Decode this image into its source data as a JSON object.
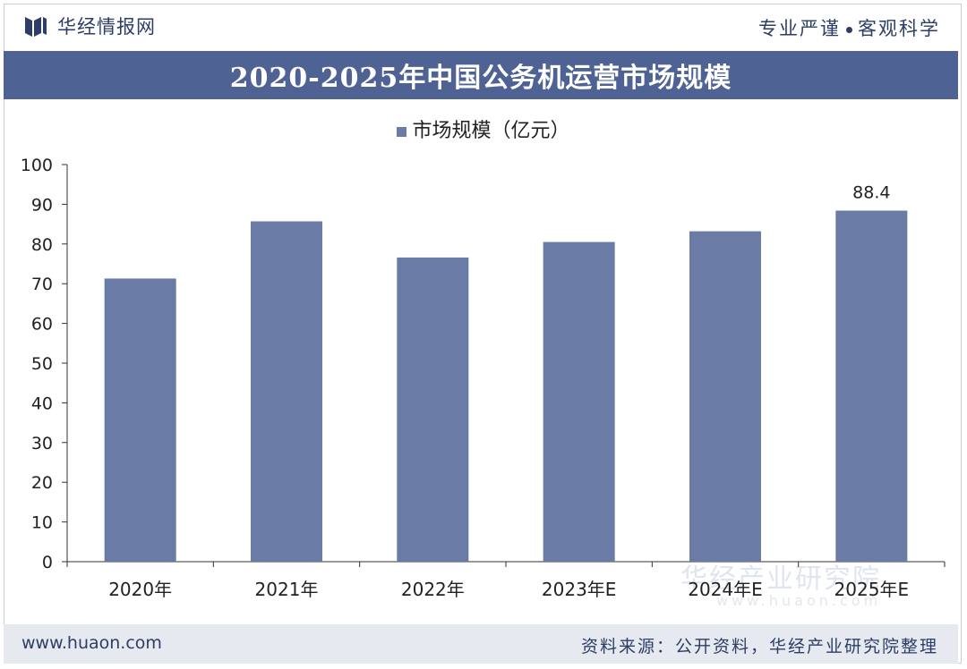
{
  "header": {
    "brand_name": "华经情报网",
    "slogan_left": "专业严谨",
    "slogan_right": "客观科学"
  },
  "title": "2020-2025年中国公务机运营市场规模",
  "legend": {
    "label": "市场规模（亿元）"
  },
  "footer": {
    "website": "www.huaon.com",
    "source": "资料来源：公开资料，华经产业研究院整理"
  },
  "watermark": {
    "text": "华经产业研究院",
    "url": "www.huaon.com"
  },
  "colors": {
    "bar": "#6a7ba6",
    "title_bar": "#4e6294",
    "brand": "#2c3e66"
  },
  "chart_data": {
    "type": "bar",
    "categories": [
      "2020年",
      "2021年",
      "2022年",
      "2023年E",
      "2024年E",
      "2025年E"
    ],
    "series": [
      {
        "name": "市场规模（亿元）",
        "values": [
          71.3,
          85.7,
          76.6,
          80.5,
          83.2,
          88.4
        ]
      }
    ],
    "data_labels": [
      {
        "category": "2025年E",
        "text": "88.4"
      }
    ],
    "ylim": [
      0,
      100
    ],
    "yticks": [
      0,
      10,
      20,
      30,
      40,
      50,
      60,
      70,
      80,
      90,
      100
    ],
    "grid": false,
    "legend_position": "top-center"
  }
}
